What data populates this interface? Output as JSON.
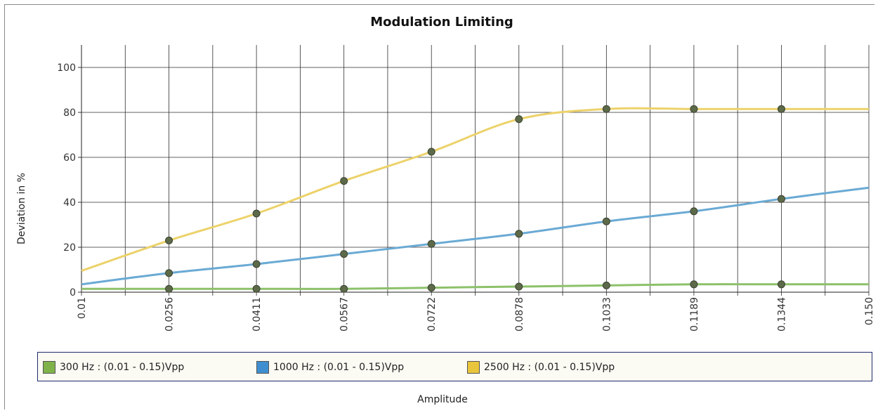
{
  "chart_data": {
    "type": "line",
    "title": "Modulation Limiting",
    "xlabel": "Amplitude",
    "ylabel": "Deviation in %",
    "ylim": [
      0,
      110
    ],
    "yticks": [
      0,
      20,
      40,
      60,
      80,
      100
    ],
    "x": [
      0.01,
      0.0256,
      0.0411,
      0.0567,
      0.0722,
      0.0878,
      0.1033,
      0.1189,
      0.1344,
      0.15
    ],
    "x_tick_labels": [
      "0.01",
      "0.0256",
      "0.0411",
      "0.0567",
      "0.0722",
      "0.0878",
      "0.1033",
      "0.1189",
      "0.1344",
      "0.150"
    ],
    "grid": true,
    "legend_position": "bottom",
    "series": [
      {
        "name": "300 Hz : (0.01 - 0.15)Vpp",
        "color": "#8cc16a",
        "values": [
          1.5,
          1.5,
          1.5,
          1.5,
          2,
          2.5,
          3,
          3.5,
          3.5,
          3.5
        ]
      },
      {
        "name": "1000 Hz : (0.01 - 0.15)Vpp",
        "color": "#6aaad4",
        "values": [
          3.5,
          8.5,
          12.5,
          17,
          21.5,
          26,
          31.5,
          36,
          41.5,
          46.5
        ]
      },
      {
        "name": "2500 Hz : (0.01 - 0.15)Vpp",
        "color": "#ecd26a",
        "values": [
          9.5,
          23,
          35,
          49.5,
          62.5,
          77,
          81.5,
          81.5,
          81.5,
          81.5
        ]
      }
    ]
  },
  "legend": {
    "swatch_colors": [
      "#7fb34a",
      "#3f8fd0",
      "#e8c53a"
    ]
  }
}
